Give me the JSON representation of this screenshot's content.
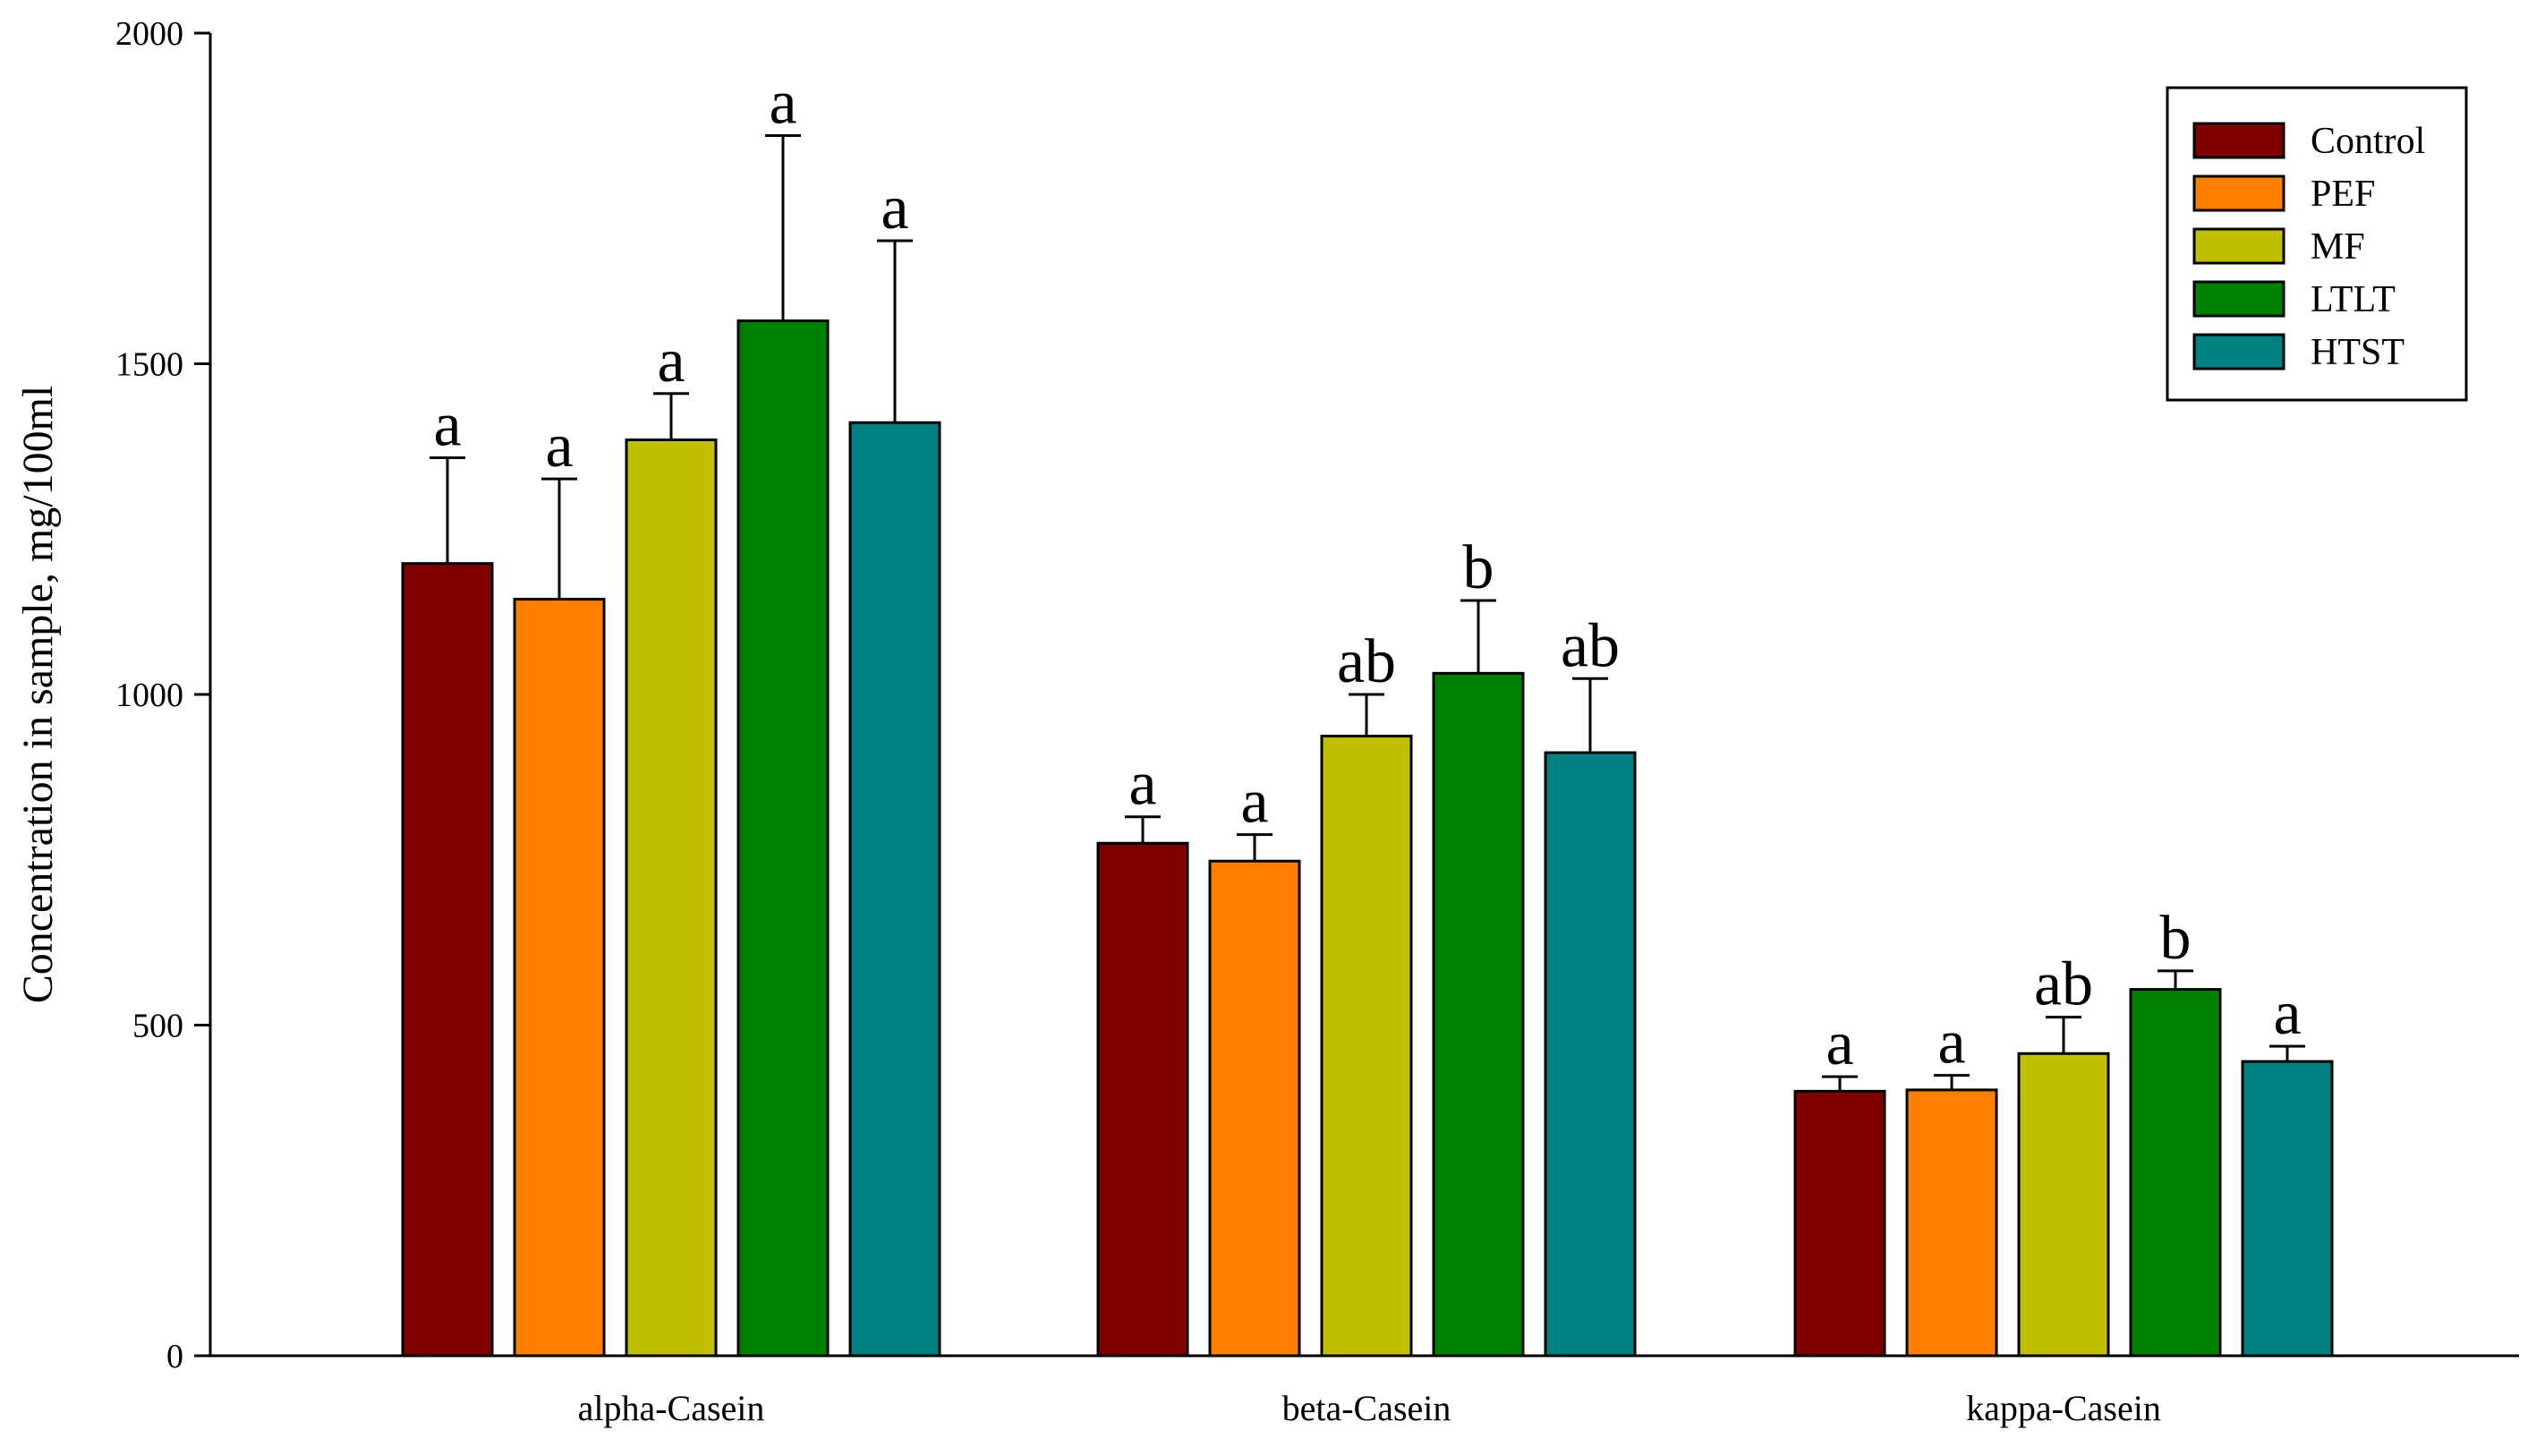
{
  "chart_data": {
    "type": "bar",
    "title": "",
    "xlabel": "",
    "ylabel": "Concentration in sample, mg/100ml",
    "ylim": [
      0,
      2000
    ],
    "yticks": [
      "0",
      "500",
      "1000",
      "1500",
      "2000"
    ],
    "grid": false,
    "legend_position": "top-right",
    "categories": [
      "alpha-Casein",
      "beta-Casein",
      "kappa-Casein"
    ],
    "series": [
      {
        "name": "Control",
        "color": "#800000",
        "values": [
          1198,
          775,
          400
        ],
        "errors": [
          160,
          40,
          22
        ],
        "significance": [
          "a",
          "a",
          "a"
        ]
      },
      {
        "name": "PEF",
        "color": "#ff8000",
        "values": [
          1144,
          748,
          402
        ],
        "errors": [
          182,
          40,
          22
        ],
        "significance": [
          "a",
          "a",
          "a"
        ]
      },
      {
        "name": "MF",
        "color": "#c0c000",
        "values": [
          1385,
          937,
          457
        ],
        "errors": [
          70,
          63,
          55
        ],
        "significance": [
          "a",
          "ab",
          "ab"
        ]
      },
      {
        "name": "LTLT",
        "color": "#008000",
        "values": [
          1565,
          1032,
          554
        ],
        "errors": [
          280,
          110,
          28
        ],
        "significance": [
          "a",
          "b",
          "b"
        ]
      },
      {
        "name": "HTST",
        "color": "#008080",
        "values": [
          1411,
          912,
          445
        ],
        "errors": [
          275,
          112,
          23
        ],
        "significance": [
          "a",
          "ab",
          "a"
        ]
      }
    ]
  }
}
